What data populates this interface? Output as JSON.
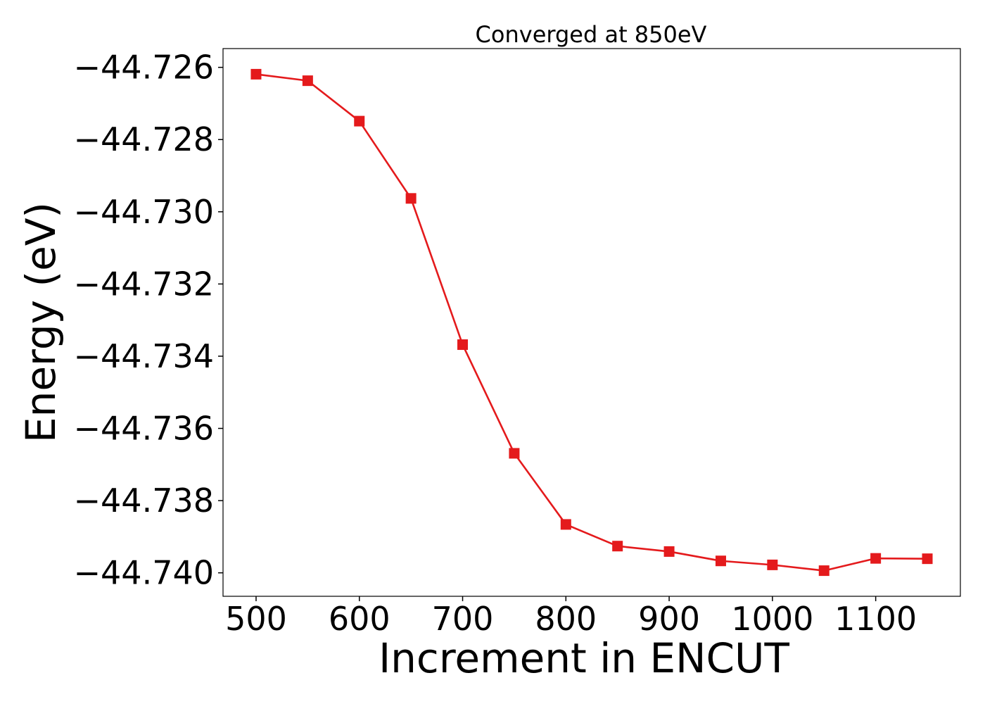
{
  "chart_data": {
    "type": "line",
    "title": "Converged at 850eV",
    "xlabel": "Increment in ENCUT",
    "ylabel": "Energy (eV)",
    "xlim": [
      468,
      1182
    ],
    "ylim": [
      -44.74065,
      -44.72548
    ],
    "x_ticks": [
      500,
      600,
      700,
      800,
      900,
      1000,
      1100
    ],
    "x_tick_labels": [
      "500",
      "600",
      "700",
      "800",
      "900",
      "1000",
      "1100"
    ],
    "y_ticks": [
      -44.726,
      -44.728,
      -44.73,
      -44.732,
      -44.734,
      -44.736,
      -44.738,
      -44.74
    ],
    "y_tick_labels": [
      "−44.726",
      "−44.728",
      "−44.730",
      "−44.732",
      "−44.734",
      "−44.736",
      "−44.738",
      "−44.740"
    ],
    "grid": false,
    "series": [
      {
        "color": "#e41a1c",
        "marker": "square",
        "x": [
          500,
          550,
          600,
          650,
          700,
          750,
          800,
          850,
          900,
          950,
          1000,
          1050,
          1100,
          1150
        ],
        "y": [
          -44.72619,
          -44.72637,
          -44.72749,
          -44.72963,
          -44.73368,
          -44.73669,
          -44.73866,
          -44.73926,
          -44.73941,
          -44.73967,
          -44.73978,
          -44.73994,
          -44.7396,
          -44.73961
        ]
      }
    ]
  }
}
